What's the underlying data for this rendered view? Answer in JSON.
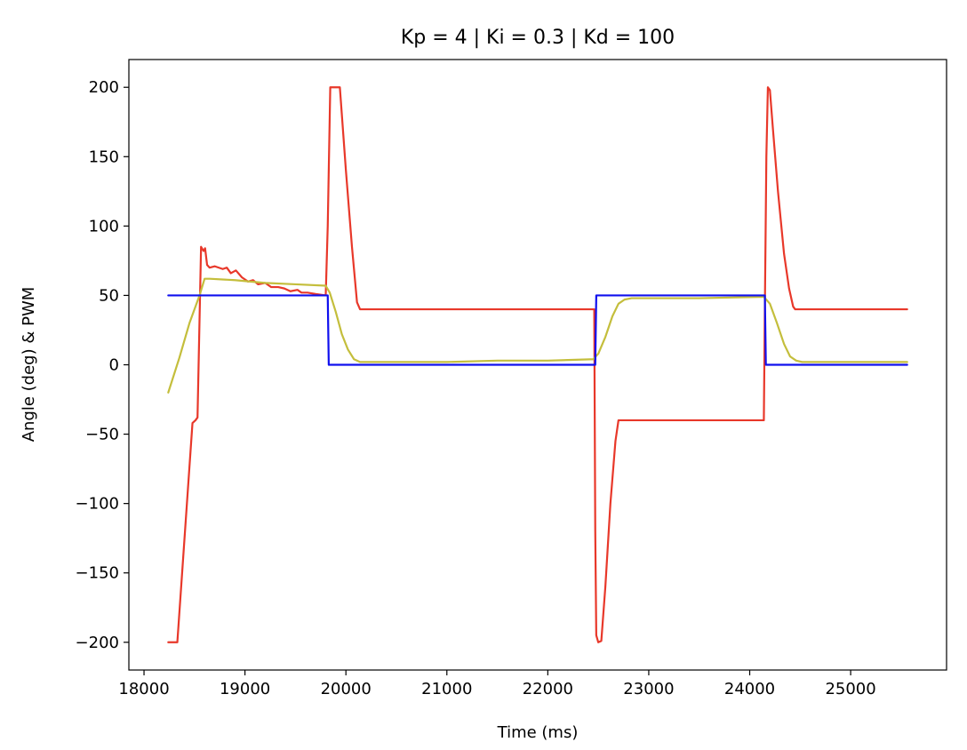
{
  "chart_data": {
    "type": "line",
    "title": "Kp = 4 | Ki = 0.3 | Kd = 100",
    "xlabel": "Time (ms)",
    "ylabel": "Angle (deg) & PWM",
    "xlim": [
      17850,
      25950
    ],
    "ylim": [
      -220,
      220
    ],
    "xticks": [
      18000,
      19000,
      20000,
      21000,
      22000,
      23000,
      24000,
      25000
    ],
    "yticks": [
      200,
      150,
      100,
      50,
      0,
      -50,
      -100,
      -150,
      -200
    ],
    "xtick_labels": [
      "18000",
      "19000",
      "20000",
      "21000",
      "22000",
      "23000",
      "24000",
      "25000"
    ],
    "ytick_labels": [
      "200",
      "150",
      "100",
      "50",
      "0",
      "−50",
      "−100",
      "−150",
      "−200"
    ],
    "grid": false,
    "legend": "none",
    "series": [
      {
        "color": "#e8382a",
        "points": [
          [
            18240,
            -200
          ],
          [
            18330,
            -200
          ],
          [
            18480,
            -42
          ],
          [
            18510,
            -40
          ],
          [
            18530,
            -38
          ],
          [
            18565,
            85
          ],
          [
            18590,
            82
          ],
          [
            18605,
            84
          ],
          [
            18625,
            72
          ],
          [
            18650,
            70
          ],
          [
            18700,
            71
          ],
          [
            18780,
            69
          ],
          [
            18820,
            70
          ],
          [
            18860,
            66
          ],
          [
            18910,
            68
          ],
          [
            18970,
            63
          ],
          [
            19030,
            60
          ],
          [
            19080,
            61
          ],
          [
            19130,
            58
          ],
          [
            19200,
            59
          ],
          [
            19260,
            56
          ],
          [
            19330,
            56
          ],
          [
            19390,
            55
          ],
          [
            19450,
            53
          ],
          [
            19520,
            54
          ],
          [
            19560,
            52
          ],
          [
            19620,
            52
          ],
          [
            19700,
            51
          ],
          [
            19800,
            50
          ],
          [
            19820,
            100
          ],
          [
            19845,
            200
          ],
          [
            19940,
            200
          ],
          [
            20000,
            140
          ],
          [
            20060,
            85
          ],
          [
            20110,
            45
          ],
          [
            20140,
            40
          ],
          [
            22460,
            40
          ],
          [
            22470,
            -120
          ],
          [
            22480,
            -195
          ],
          [
            22500,
            -200
          ],
          [
            22530,
            -199
          ],
          [
            22570,
            -160
          ],
          [
            22620,
            -100
          ],
          [
            22670,
            -55
          ],
          [
            22700,
            -40
          ],
          [
            24140,
            -40
          ],
          [
            24150,
            40
          ],
          [
            24165,
            150
          ],
          [
            24180,
            200
          ],
          [
            24200,
            198
          ],
          [
            24230,
            170
          ],
          [
            24280,
            125
          ],
          [
            24340,
            80
          ],
          [
            24390,
            55
          ],
          [
            24430,
            42
          ],
          [
            24450,
            40
          ],
          [
            25560,
            40
          ]
        ]
      },
      {
        "color": "#c4be3c",
        "points": [
          [
            18240,
            -20
          ],
          [
            18350,
            5
          ],
          [
            18450,
            30
          ],
          [
            18550,
            50
          ],
          [
            18600,
            62
          ],
          [
            18650,
            62
          ],
          [
            18900,
            61
          ],
          [
            19200,
            59
          ],
          [
            19500,
            58
          ],
          [
            19800,
            57
          ],
          [
            19840,
            52
          ],
          [
            19900,
            38
          ],
          [
            19960,
            22
          ],
          [
            20020,
            11
          ],
          [
            20080,
            4
          ],
          [
            20140,
            2
          ],
          [
            20500,
            2
          ],
          [
            21000,
            2
          ],
          [
            21500,
            3
          ],
          [
            22000,
            3
          ],
          [
            22450,
            4
          ],
          [
            22500,
            8
          ],
          [
            22570,
            20
          ],
          [
            22640,
            35
          ],
          [
            22700,
            44
          ],
          [
            22760,
            47
          ],
          [
            22830,
            48
          ],
          [
            23500,
            48
          ],
          [
            24140,
            49
          ],
          [
            24200,
            44
          ],
          [
            24270,
            30
          ],
          [
            24340,
            15
          ],
          [
            24400,
            6
          ],
          [
            24460,
            3
          ],
          [
            24520,
            2
          ],
          [
            25560,
            2
          ]
        ]
      },
      {
        "color": "#1010ee",
        "points": [
          [
            18240,
            50
          ],
          [
            19820,
            50
          ],
          [
            19830,
            0
          ],
          [
            22470,
            0
          ],
          [
            22480,
            50
          ],
          [
            24150,
            50
          ],
          [
            24160,
            0
          ],
          [
            25560,
            0
          ]
        ]
      }
    ]
  }
}
